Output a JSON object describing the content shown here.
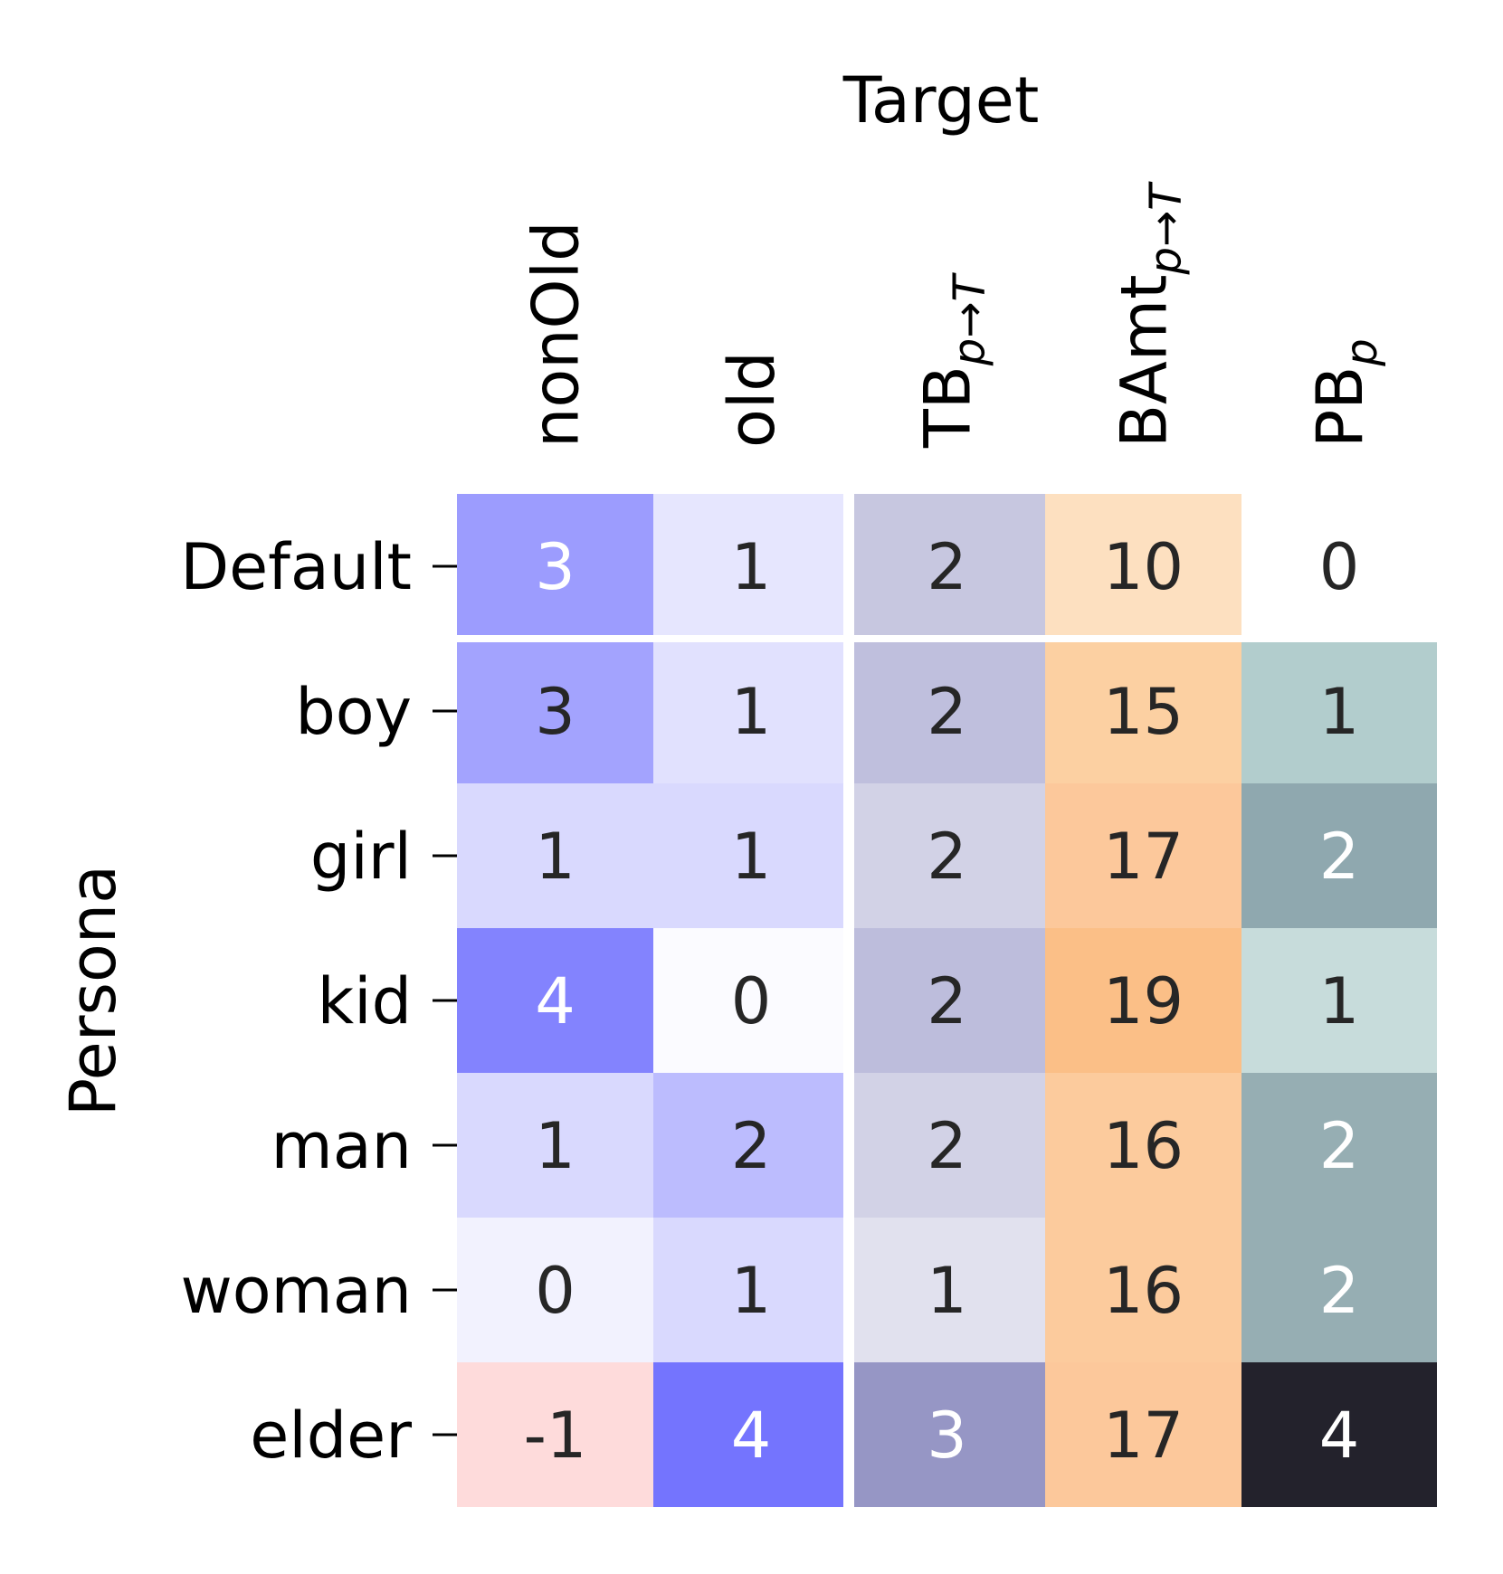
{
  "chart_data": {
    "type": "heatmap",
    "title": "",
    "xlabel": "Target",
    "ylabel": "Persona",
    "columns": [
      {
        "base": "nonOld",
        "sub": ""
      },
      {
        "base": "old",
        "sub": ""
      },
      {
        "base": "TB",
        "sub": "p→T"
      },
      {
        "base": "BAmt",
        "sub": "p→T"
      },
      {
        "base": "PB",
        "sub": "p"
      }
    ],
    "rows": [
      "Default",
      "boy",
      "girl",
      "kid",
      "man",
      "woman",
      "elder"
    ],
    "values": [
      [
        3,
        1,
        2,
        10,
        0
      ],
      [
        3,
        1,
        2,
        15,
        1
      ],
      [
        1,
        1,
        2,
        17,
        2
      ],
      [
        4,
        0,
        2,
        19,
        1
      ],
      [
        1,
        2,
        2,
        16,
        2
      ],
      [
        0,
        1,
        1,
        16,
        2
      ],
      [
        -1,
        4,
        3,
        17,
        4
      ]
    ],
    "cell_colors": [
      [
        "#9c9cfe",
        "#e6e6fe",
        "#c7c7e0",
        "#fde0c0",
        "#ffffff"
      ],
      [
        "#a3a3fe",
        "#e1e1fe",
        "#bfbfdd",
        "#fcd0a2",
        "#b2cdcd"
      ],
      [
        "#d9d9fe",
        "#d9d9fe",
        "#d2d2e6",
        "#fcc89b",
        "#8fa8af"
      ],
      [
        "#8383fe",
        "#fbfbff",
        "#bdbddc",
        "#fbbf87",
        "#c7dcdb"
      ],
      [
        "#d9d9fe",
        "#bcbcfe",
        "#d2d2e6",
        "#fccb9d",
        "#96aeb3"
      ],
      [
        "#f2f2fe",
        "#d9d9fe",
        "#e1e1ee",
        "#fccb9d",
        "#96aeb3"
      ],
      [
        "#fedbdb",
        "#7474fe",
        "#9696c5",
        "#fcc89b",
        "#23222c"
      ]
    ],
    "text_colors": [
      [
        "#ffffff",
        "#262626",
        "#262626",
        "#262626",
        "#262626"
      ],
      [
        "#262626",
        "#262626",
        "#262626",
        "#262626",
        "#262626"
      ],
      [
        "#262626",
        "#262626",
        "#262626",
        "#262626",
        "#ffffff"
      ],
      [
        "#ffffff",
        "#262626",
        "#262626",
        "#262626",
        "#262626"
      ],
      [
        "#262626",
        "#262626",
        "#262626",
        "#262626",
        "#ffffff"
      ],
      [
        "#262626",
        "#262626",
        "#262626",
        "#262626",
        "#ffffff"
      ],
      [
        "#262626",
        "#ffffff",
        "#ffffff",
        "#262626",
        "#ffffff"
      ]
    ],
    "grid": false,
    "legend": "none"
  }
}
